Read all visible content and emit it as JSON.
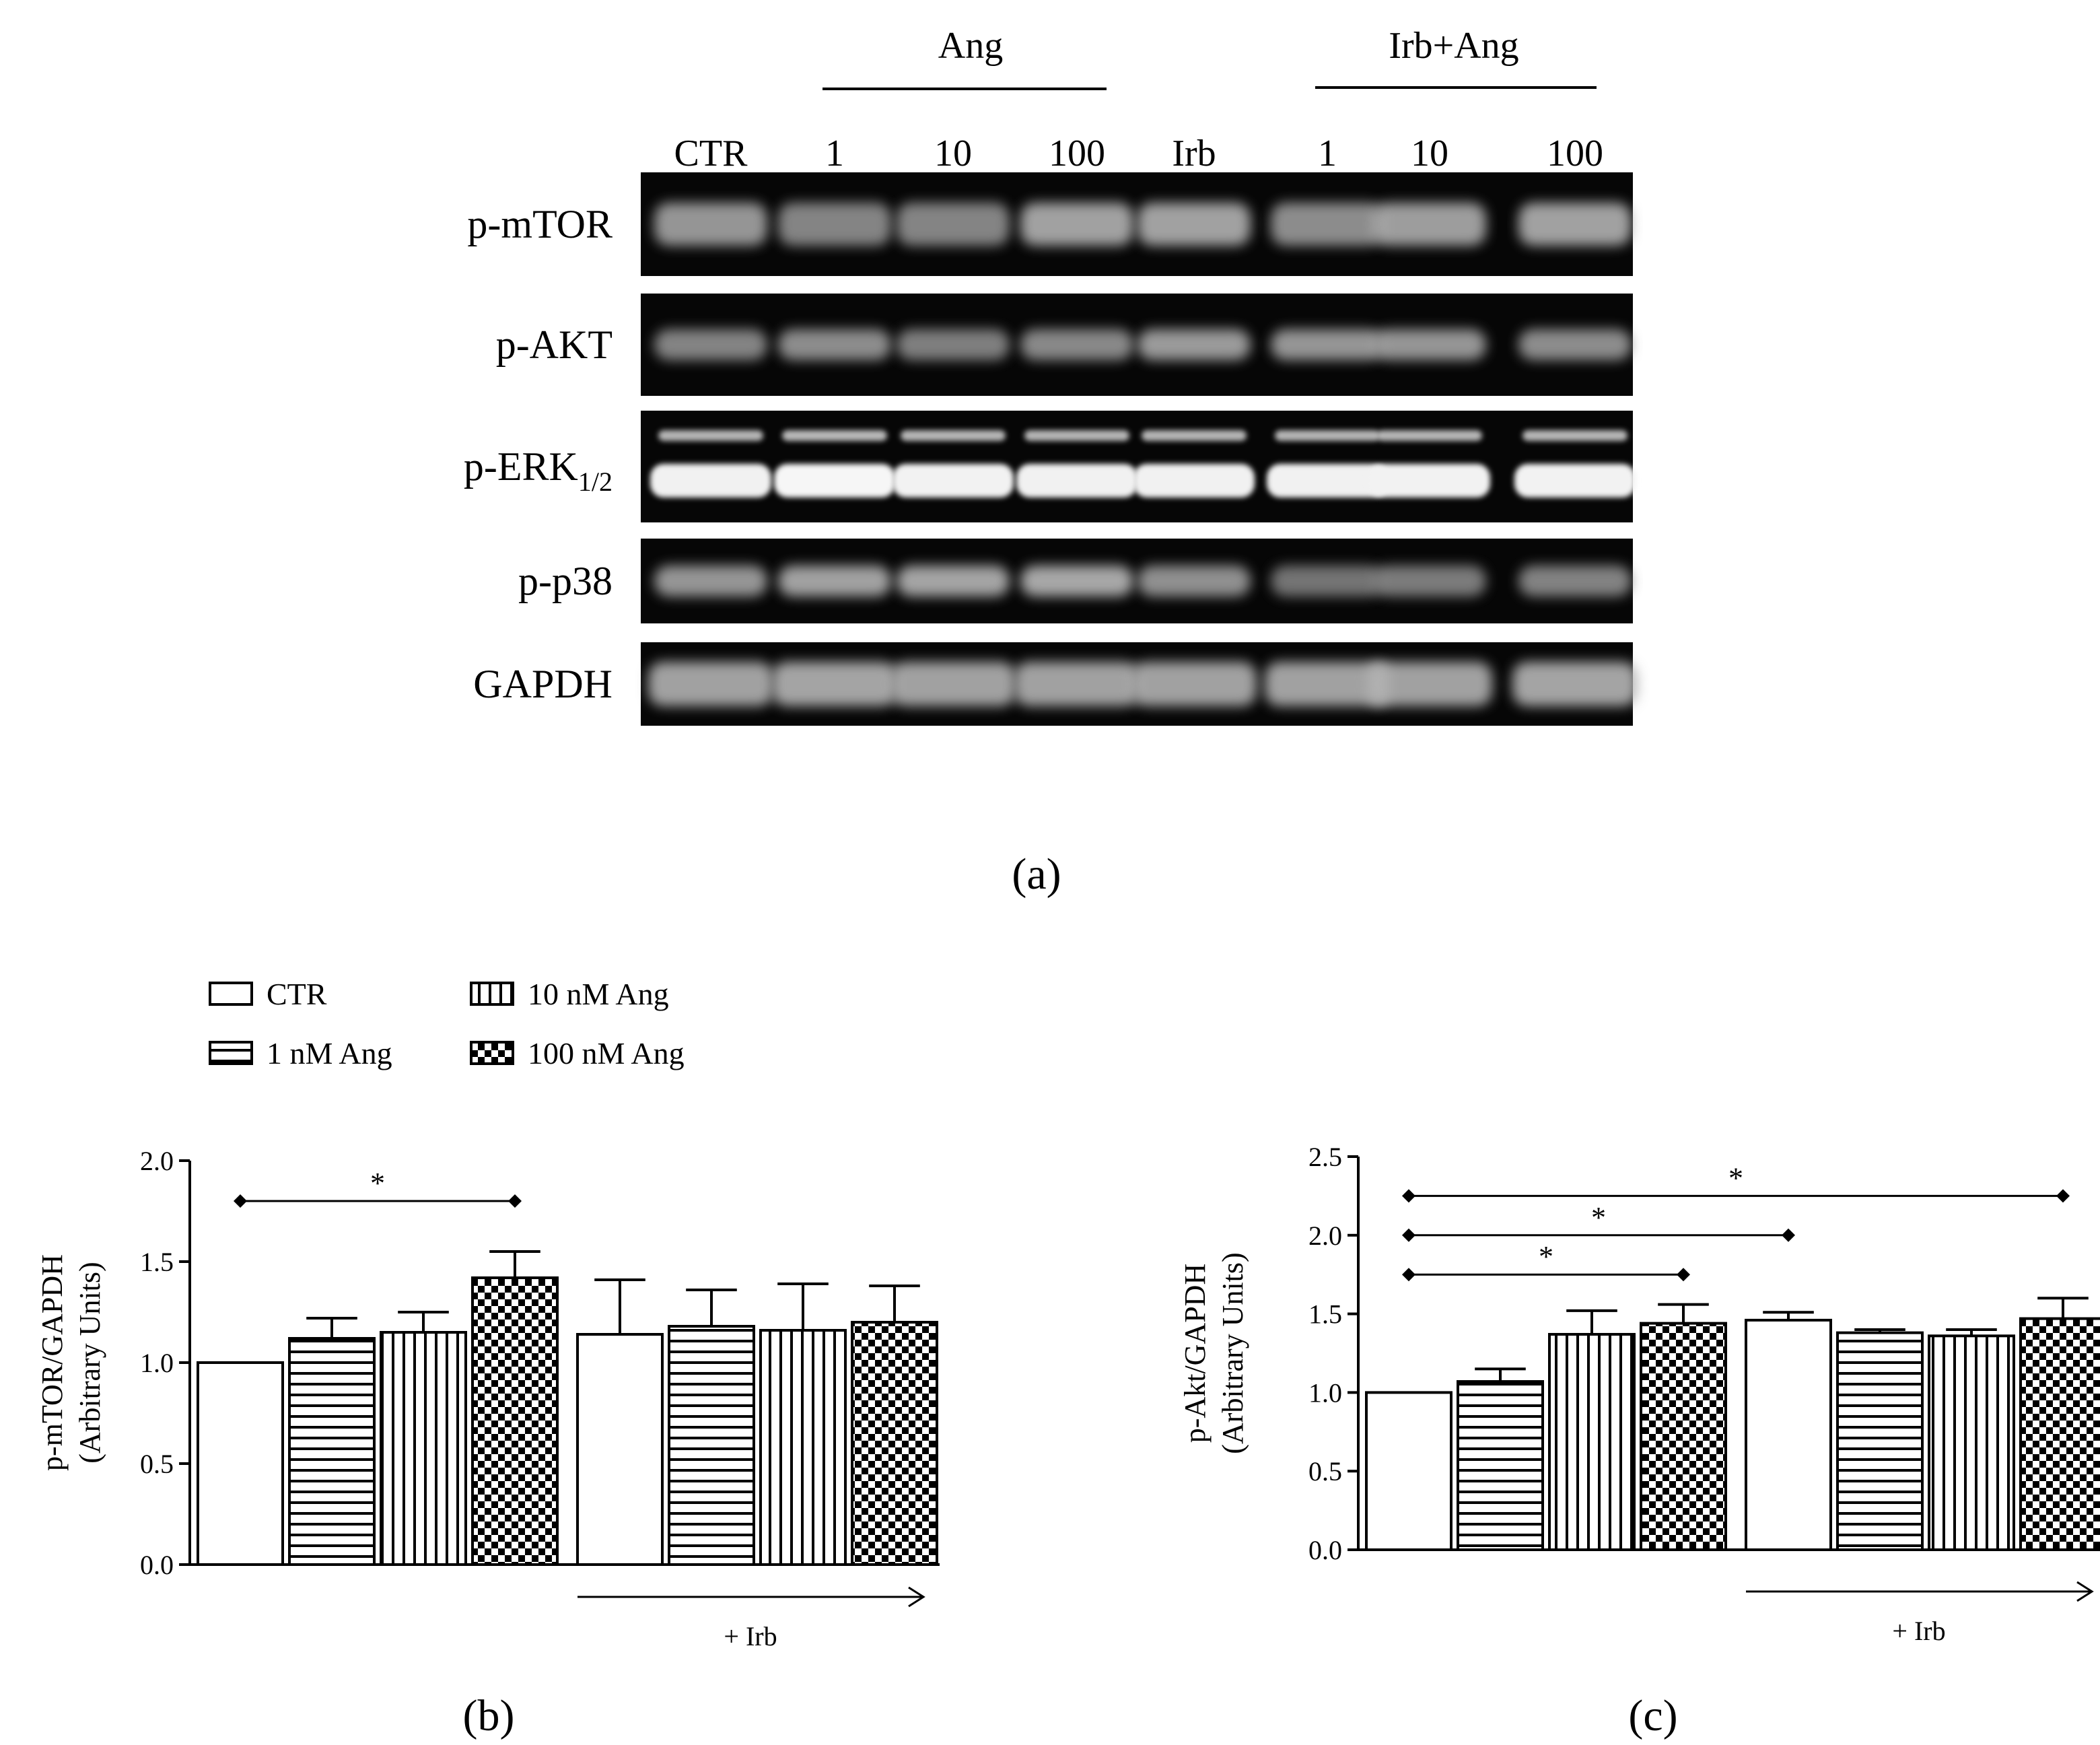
{
  "panel_a": {
    "label": "(a)",
    "group_ang": "Ang",
    "group_irb_ang": "Irb+Ang",
    "lanes": [
      "CTR",
      "1",
      "10",
      "100",
      "Irb",
      "1",
      "10",
      "100"
    ],
    "row_labels": [
      {
        "main": "p-mTOR",
        "sub": ""
      },
      {
        "main": "p-AKT",
        "sub": ""
      },
      {
        "main": "p-ERK",
        "sub": "1/2"
      },
      {
        "main": "p-p38",
        "sub": ""
      },
      {
        "main": "GAPDH",
        "sub": ""
      }
    ]
  },
  "legend": {
    "items": [
      {
        "label": "CTR",
        "pattern": "none"
      },
      {
        "label": "1 nM Ang",
        "pattern": "horizontal"
      },
      {
        "label": "10 nM Ang",
        "pattern": "vertical"
      },
      {
        "label": "100 nM Ang",
        "pattern": "checker"
      }
    ]
  },
  "chart_data": [
    {
      "type": "bar",
      "panel_label": "(b)",
      "ylabel": "p-mTOR/GAPDH",
      "ylabel2": "(Arbitrary Units)",
      "ylim": [
        0,
        2.0
      ],
      "yticks": [
        "0.0",
        "0.5",
        "1.0",
        "1.5",
        "2.0"
      ],
      "categories": [
        "CTR",
        "1 nM Ang",
        "10 nM Ang",
        "100 nM Ang",
        "CTR",
        "1 nM Ang",
        "10 nM Ang",
        "100 nM Ang"
      ],
      "patterns": [
        "none",
        "horizontal",
        "vertical",
        "checker",
        "none",
        "horizontal",
        "vertical",
        "checker"
      ],
      "values": [
        1.0,
        1.12,
        1.15,
        1.42,
        1.14,
        1.18,
        1.16,
        1.2
      ],
      "errors": [
        0,
        0.1,
        0.1,
        0.13,
        0.27,
        0.18,
        0.23,
        0.18
      ],
      "irb_label": "+ Irb",
      "significance": [
        {
          "from": 0,
          "to": 3,
          "y": 1.8,
          "label": "*"
        }
      ]
    },
    {
      "type": "bar",
      "panel_label": "(c)",
      "ylabel": "p-Akt/GAPDH",
      "ylabel2": "(Arbitrary Units)",
      "ylim": [
        0,
        2.5
      ],
      "yticks": [
        "0.0",
        "0.5",
        "1.0",
        "1.5",
        "2.0",
        "2.5"
      ],
      "categories": [
        "CTR",
        "1 nM Ang",
        "10 nM Ang",
        "100 nM Ang",
        "CTR",
        "1 nM Ang",
        "10 nM Ang",
        "100 nM Ang"
      ],
      "patterns": [
        "none",
        "horizontal",
        "vertical",
        "checker",
        "none",
        "horizontal",
        "vertical",
        "checker"
      ],
      "values": [
        1.0,
        1.07,
        1.37,
        1.44,
        1.46,
        1.38,
        1.36,
        1.47
      ],
      "errors": [
        0,
        0.08,
        0.15,
        0.12,
        0.05,
        0.02,
        0.04,
        0.13
      ],
      "irb_label": "+ Irb",
      "significance": [
        {
          "from": 0,
          "to": 3,
          "y": 1.75,
          "label": "*"
        },
        {
          "from": 0,
          "to": 4,
          "y": 2.0,
          "label": "*"
        },
        {
          "from": 0,
          "to": 7,
          "y": 2.25,
          "label": "*"
        }
      ]
    }
  ]
}
